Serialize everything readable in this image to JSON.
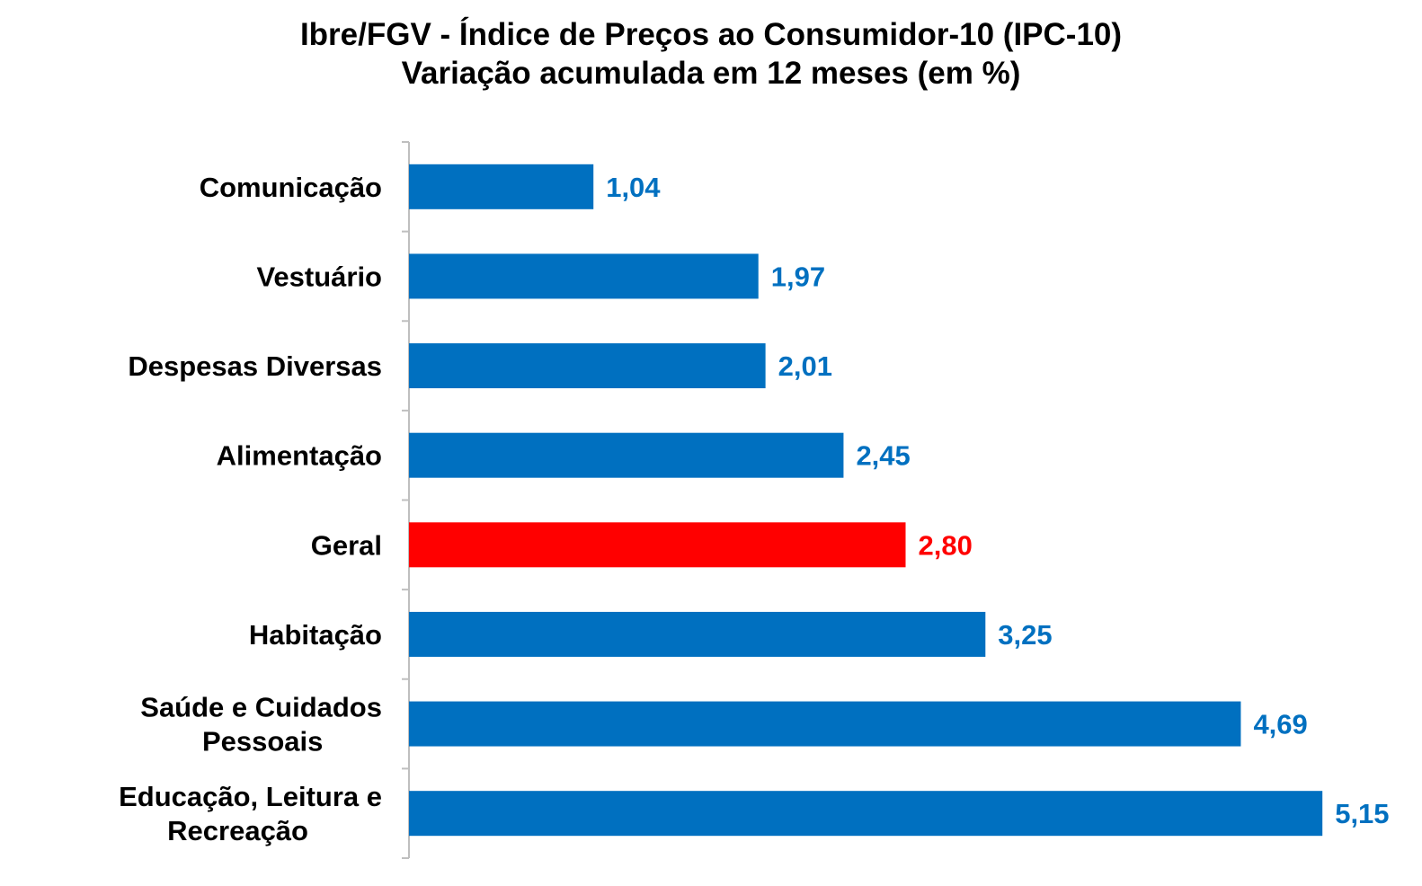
{
  "chart_data": {
    "type": "bar",
    "orientation": "horizontal",
    "title": "Ibre/FGV - Índice de Preços ao Consumidor-10 (IPC-10)",
    "subtitle": "Variação acumulada em 12 meses (em %)",
    "xlabel": "",
    "ylabel": "",
    "xlim": [
      0,
      5.6
    ],
    "grid": false,
    "legend": "none",
    "categories": [
      "Comunicação",
      "Vestuário",
      "Despesas Diversas",
      "Alimentação",
      "Geral",
      "Habitação",
      "Saúde e Cuidados Pessoais",
      "Educação, Leitura e Recreação"
    ],
    "category_lines": [
      [
        "Comunicação"
      ],
      [
        "Vestuário"
      ],
      [
        "Despesas Diversas"
      ],
      [
        "Alimentação"
      ],
      [
        "Geral"
      ],
      [
        "Habitação"
      ],
      [
        "Saúde e Cuidados",
        "Pessoais"
      ],
      [
        "Educação, Leitura e",
        "Recreação"
      ]
    ],
    "values": [
      1.04,
      1.97,
      2.01,
      2.45,
      2.8,
      3.25,
      4.69,
      5.15
    ],
    "value_labels": [
      "1,04",
      "1,97",
      "2,01",
      "2,45",
      "2,80",
      "3,25",
      "4,69",
      "5,15"
    ],
    "highlight_category": "Geral",
    "colors": {
      "bar": "#0070c0",
      "highlight": "#ff0000",
      "axis": "#bfbfbf"
    }
  }
}
